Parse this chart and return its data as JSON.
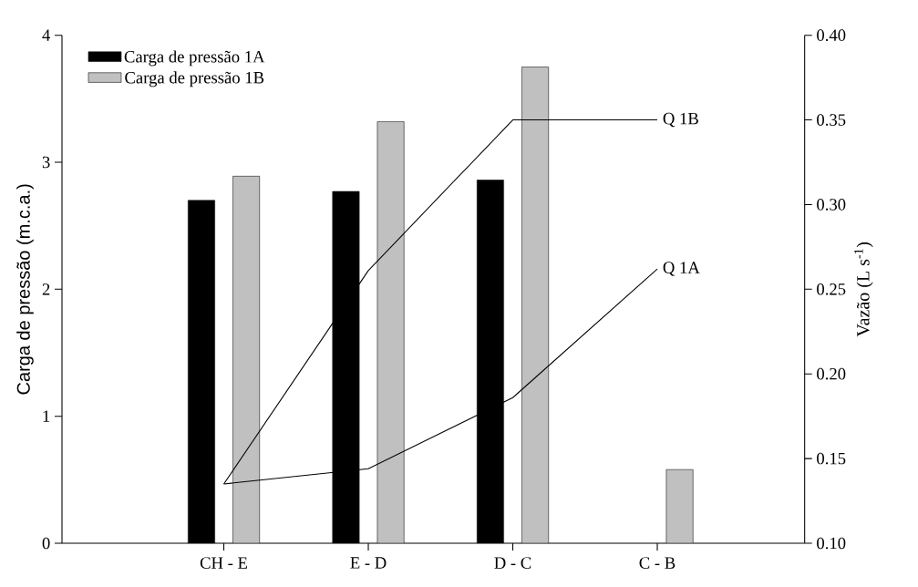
{
  "chart_data": {
    "type": "bar",
    "ylabel": "Carga de pressão (m.c.a.)",
    "y2label": "Vazão (L s$^{-1}$)",
    "categories": [
      "CH - E",
      "E - D",
      "D - C",
      "C - B"
    ],
    "series": [
      {
        "name": "Carga de pressão 1A",
        "color": "#000000",
        "values": [
          2.7,
          2.77,
          2.86,
          null
        ]
      },
      {
        "name": "Carga de pressão 1B",
        "color": "#c0c0c0",
        "values": [
          2.89,
          3.32,
          3.75,
          0.58
        ]
      },
      {
        "name": "Q 1A",
        "type": "line",
        "axis": "y2",
        "color": "#000000",
        "values": [
          0.135,
          0.144,
          0.186,
          0.262
        ]
      },
      {
        "name": "Q 1B",
        "type": "line",
        "axis": "y2",
        "color": "#000000",
        "values": [
          0.135,
          0.261,
          0.35,
          0.35
        ]
      }
    ],
    "ylim": [
      0,
      4
    ],
    "yticks": [
      0,
      1,
      2,
      3,
      4
    ],
    "y2lim": [
      0.1,
      0.4
    ],
    "y2ticks": [
      {
        "value": 0.1,
        "label": "0.10"
      },
      {
        "value": 0.15,
        "label": "0.15"
      },
      {
        "value": 0.2,
        "label": "0.20"
      },
      {
        "value": 0.25,
        "label": "0.25"
      },
      {
        "value": 0.3,
        "label": "0.30"
      },
      {
        "value": 0.35,
        "label": "0.35"
      },
      {
        "value": 0.4,
        "label": "0.40"
      }
    ],
    "legend": "top left"
  }
}
